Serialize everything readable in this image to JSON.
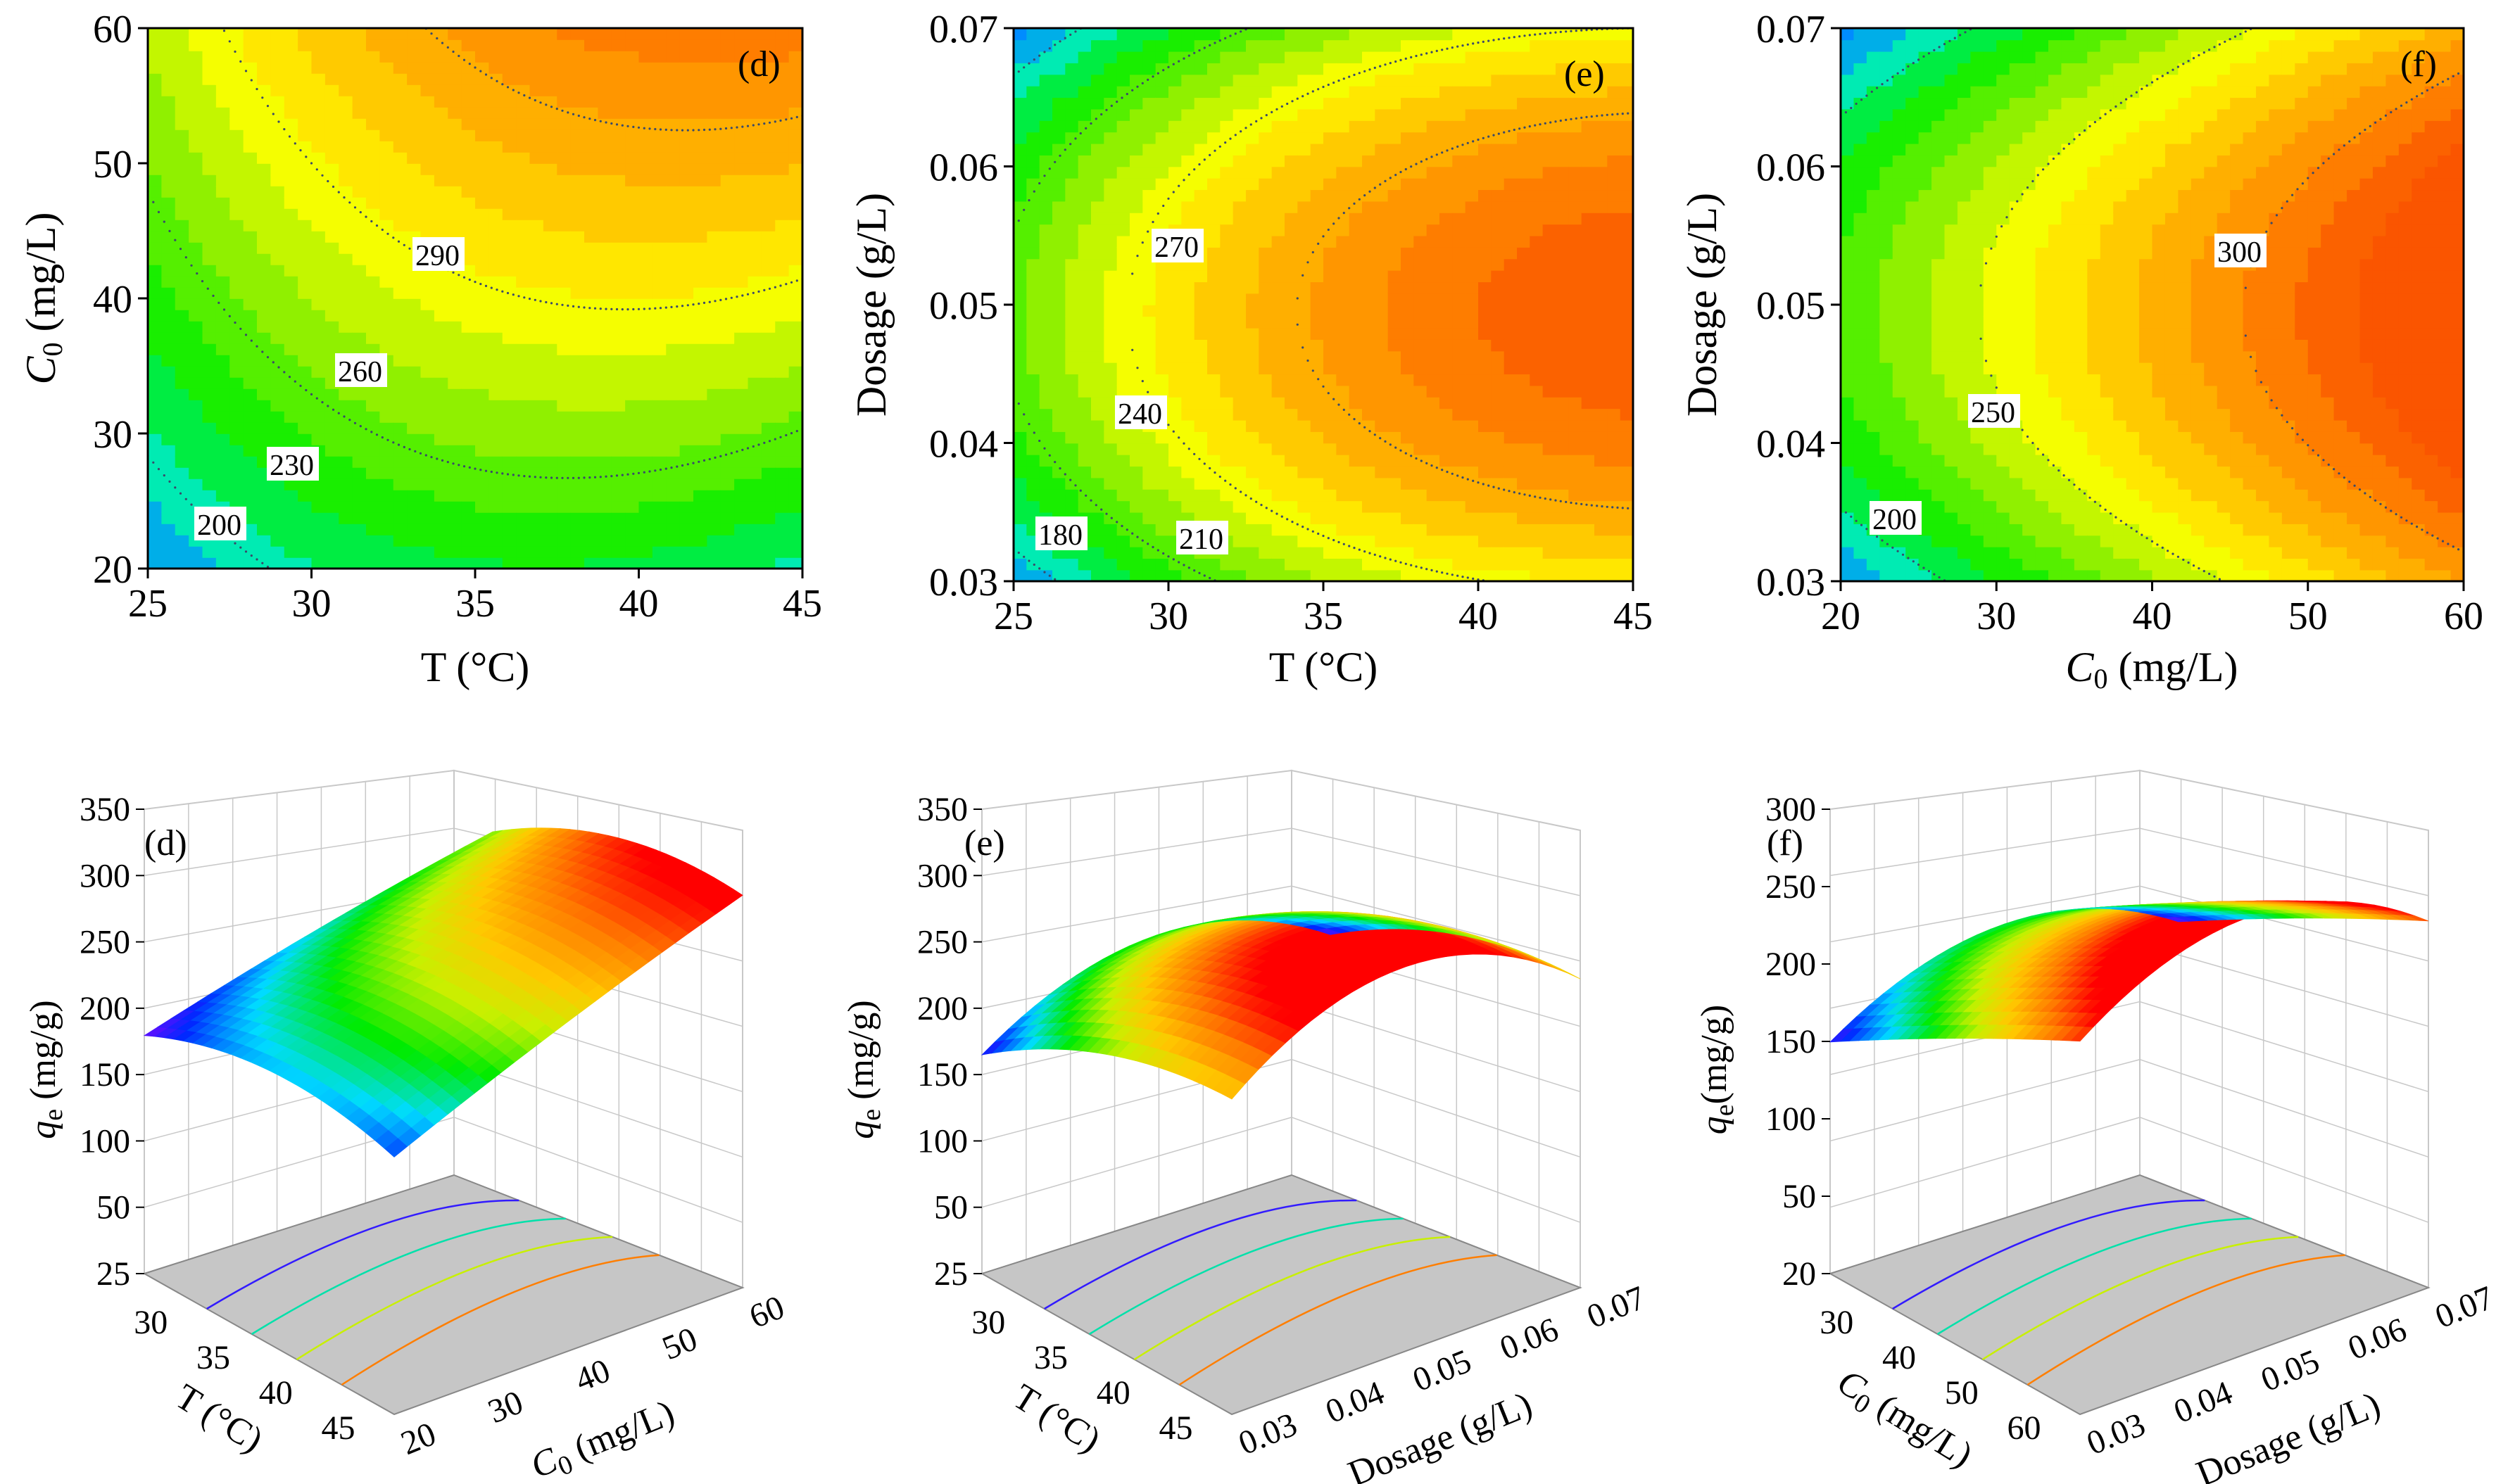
{
  "chart_data": [
    {
      "type": "heatmap",
      "panel": "(d)",
      "style": "filled-contour",
      "x": {
        "label": "T (°C)",
        "range": [
          25,
          45
        ],
        "ticks": [
          "25",
          "30",
          "35",
          "40",
          "45"
        ]
      },
      "y": {
        "label_sym": "C",
        "label_sub": "0",
        "label_rest": " (mg/L)",
        "range": [
          20,
          60
        ],
        "ticks": [
          "20",
          "30",
          "40",
          "50",
          "60"
        ]
      },
      "contour_levels": [
        "200",
        "230",
        "260",
        "290"
      ],
      "response": "q_e (mg/g)",
      "z_range": [
        185,
        320
      ]
    },
    {
      "type": "heatmap",
      "panel": "(e)",
      "style": "filled-contour",
      "x": {
        "label": "T (°C)",
        "range": [
          25,
          45
        ],
        "ticks": [
          "25",
          "30",
          "35",
          "40",
          "45"
        ]
      },
      "y": {
        "label": "Dosage (g/L)",
        "range": [
          0.03,
          0.07
        ],
        "ticks": [
          "0.03",
          "0.04",
          "0.05",
          "0.06",
          "0.07"
        ]
      },
      "contour_levels": [
        "180",
        "210",
        "240",
        "270"
      ],
      "response": "q_e (mg/g)",
      "z_range": [
        170,
        300
      ]
    },
    {
      "type": "heatmap",
      "panel": "(f)",
      "style": "filled-contour",
      "x": {
        "label_sym": "C",
        "label_sub": "0",
        "label_rest": " (mg/L)",
        "range": [
          20,
          60
        ],
        "ticks": [
          "20",
          "30",
          "40",
          "50",
          "60"
        ]
      },
      "y": {
        "label": "Dosage (g/L)",
        "range": [
          0.03,
          0.07
        ],
        "ticks": [
          "0.03",
          "0.04",
          "0.05",
          "0.06",
          "0.07"
        ]
      },
      "contour_levels": [
        "200",
        "250",
        "300"
      ],
      "response": "q_e (mg/g)",
      "z_range": [
        180,
        320
      ]
    },
    {
      "type": "surface3d",
      "panel": "(d)",
      "z": {
        "label_sym": "q",
        "label_sub": "e",
        "label_rest": " (mg/g)",
        "ticks": [
          "25",
          "50",
          "100",
          "150",
          "200",
          "250",
          "300",
          "350"
        ]
      },
      "axis_a": {
        "label": "T (°C)",
        "ticks": [
          "30",
          "35",
          "40",
          "45"
        ]
      },
      "axis_b": {
        "label_sym": "C",
        "label_sub": "0",
        "label_rest": " (mg/L)",
        "ticks": [
          "20",
          "30",
          "40",
          "50",
          "60"
        ]
      },
      "z_range": [
        180,
        300
      ]
    },
    {
      "type": "surface3d",
      "panel": "(e)",
      "z": {
        "label_sym": "q",
        "label_sub": "e",
        "label_rest": " (mg/g)",
        "ticks": [
          "25",
          "50",
          "100",
          "150",
          "200",
          "250",
          "300",
          "350"
        ]
      },
      "axis_a": {
        "label": "T (°C)",
        "ticks": [
          "30",
          "35",
          "40",
          "45"
        ]
      },
      "axis_b": {
        "label": "Dosage (g/L)",
        "ticks": [
          "0.03",
          "0.04",
          "0.05",
          "0.06",
          "0.07"
        ]
      },
      "z_range": [
        160,
        280
      ]
    },
    {
      "type": "surface3d",
      "panel": "(f)",
      "z": {
        "label_sym": "q",
        "label_sub": "e",
        "label_rest": "(mg/g)",
        "ticks": [
          "20",
          "50",
          "100",
          "150",
          "200",
          "250",
          "300"
        ]
      },
      "axis_a": {
        "label_sym": "C",
        "label_sub": "0",
        "label_rest": " (mg/L)",
        "ticks": [
          "30",
          "40",
          "50",
          "60"
        ]
      },
      "axis_b": {
        "label": "Dosage (g/L)",
        "ticks": [
          "0.03",
          "0.04",
          "0.05",
          "0.06",
          "0.07"
        ]
      },
      "z_range": [
        170,
        300
      ]
    }
  ],
  "colors": {
    "contour_line": "#3a4a6a",
    "floor": "#c6c6c6",
    "grid": "#c8c8c8"
  }
}
